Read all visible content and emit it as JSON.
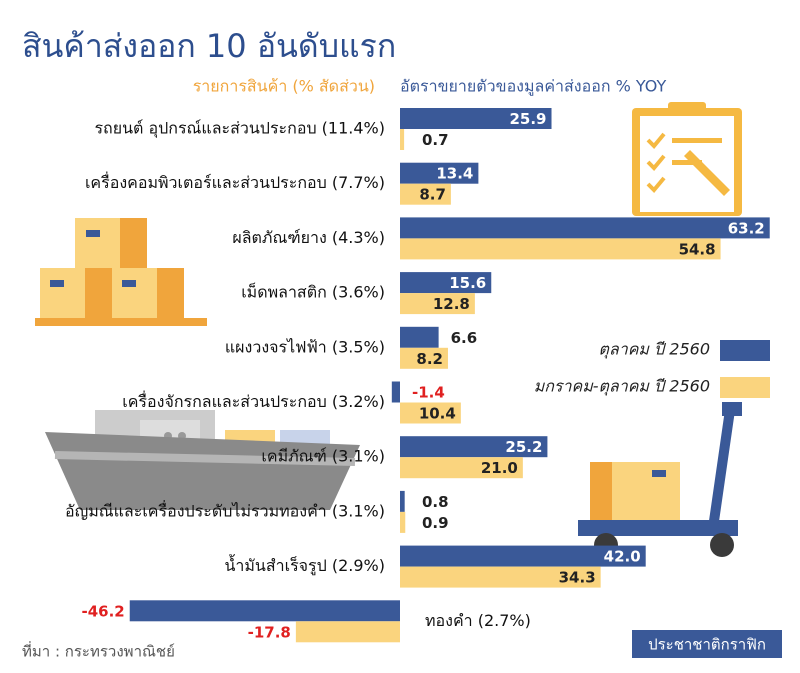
{
  "chart_data": {
    "type": "bar",
    "title": "สินค้าส่งออก 10 อันดับแรก",
    "category_header": "รายการสินค้า (% สัดส่วน)",
    "value_header": "อัตราขยายตัวของมูลค่าส่งออก % YOY",
    "source": "ที่มา : กระทรวงพาณิชย์",
    "brand": "ประชาชาติกราฟิก",
    "categories": [
      "รถยนต์ อุปกรณ์และส่วนประกอบ (11.4%)",
      "เครื่องคอมพิวเตอร์และส่วนประกอบ (7.7%)",
      "ผลิตภัณฑ์ยาง (4.3%)",
      "เม็ดพลาสติก (3.6%)",
      "แผงวงจรไฟฟ้า (3.5%)",
      "เครื่องจักรกลและส่วนประกอบ (3.2%)",
      "เคมีภัณฑ์ (3.1%)",
      "อัญมณีและเครื่องประดับไม่รวมทองคำ (3.1%)",
      "น้ำมันสำเร็จรูป (2.9%)",
      "ทองคำ (2.7%)"
    ],
    "series": [
      {
        "name": "ตุลาคม ปี 2560",
        "color": "#3a5998",
        "values": [
          25.9,
          13.4,
          63.2,
          15.6,
          6.6,
          -1.4,
          25.2,
          0.8,
          42.0,
          -46.2
        ],
        "value_labels": [
          "25.9",
          "13.4",
          "63.2",
          "15.6",
          "6.6",
          "-1.4",
          "25.2",
          "0.8",
          "42.0",
          "-46.2"
        ]
      },
      {
        "name": "มกราคม-ตุลาคม ปี 2560",
        "color": "#fad47e",
        "values": [
          0.7,
          8.7,
          54.8,
          12.8,
          8.2,
          10.4,
          21.0,
          0.9,
          34.3,
          -17.8
        ],
        "value_labels": [
          "0.7",
          "8.7",
          "54.8",
          "12.8",
          "8.2",
          "10.4",
          "21.0",
          "0.9",
          "34.3",
          "-17.8"
        ]
      }
    ]
  }
}
